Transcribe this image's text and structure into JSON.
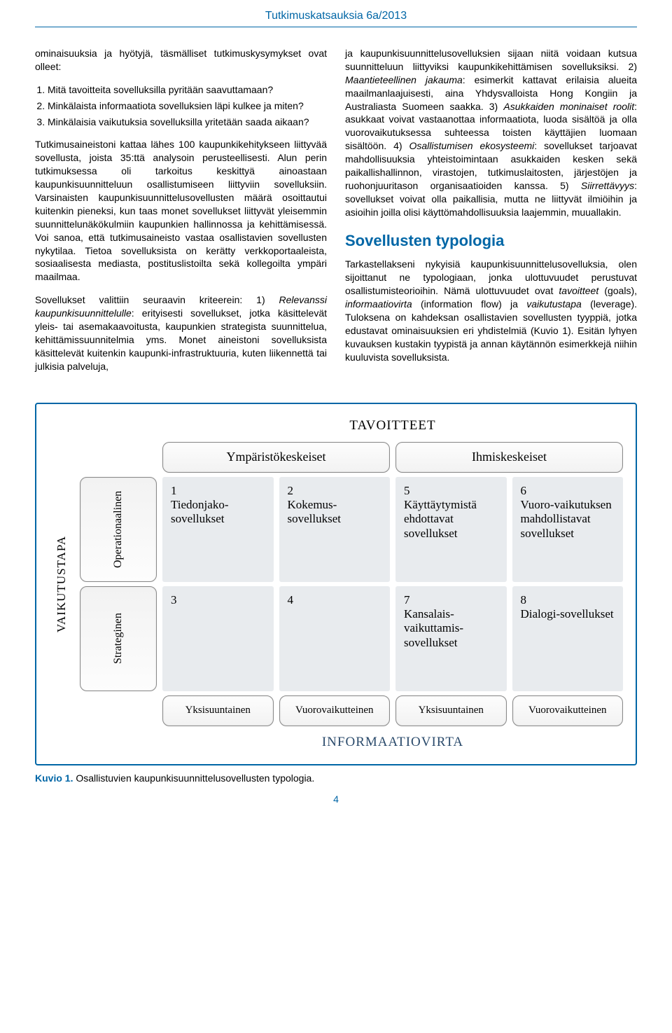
{
  "header": {
    "title": "Tutkimuskatsauksia 6a/2013"
  },
  "left_col": {
    "intro": "ominaisuuksia ja hyötyjä, täsmälliset tutkimuskysymykset ovat olleet:",
    "questions": [
      "Mitä tavoitteita sovelluksilla pyritään saavuttamaan?",
      "Minkälaista informaatiota sovelluksien läpi kulkee ja miten?",
      "Minkälaisia vaikutuksia sovelluksilla yritetään saada aikaan?"
    ],
    "p2": "Tutkimusaineistoni kattaa lähes 100 kaupunkikehitykseen liittyvää sovellusta, joista 35:ttä analysoin perusteellisesti. Alun perin tutkimuksessa oli tarkoitus keskittyä ainoastaan kaupunkisuunnitteluun osallistumiseen liittyviin sovelluksiin. Varsinaisten kaupunkisuunnittelusovellusten määrä osoittautui kuitenkin pieneksi, kun taas monet sovellukset liittyvät yleisemmin suunnittelunäkökulmiin kaupunkien hallinnossa ja kehittämisessä. Voi sanoa, että tutkimusaineisto vastaa osallistavien sovellusten nykytilaa. Tietoa sovelluksista on kerätty verkkoportaaleista, sosiaalisesta mediasta, postituslistoilta sekä kollegoilta ympäri maailmaa.",
    "p3_before_i1": "Sovellukset valittiin seuraavin kriteerein: 1) ",
    "p3_i1": "Relevanssi kaupunkisuunnittelulle",
    "p3_after_i1": ": erityisesti sovellukset, jotka käsittelevät yleis- tai asemakaavoitusta, kaupunkien strategista suunnittelua, kehittämissuunnitelmia yms. Monet aineistoni sovelluksista käsittelevät kuitenkin kaupunki-infrastruktuuria, kuten liikennettä tai julkisia palveluja,"
  },
  "right_col": {
    "p1_a": "ja kaupunkisuunnittelusovelluksien sijaan niitä voidaan kutsua suunnitteluun liittyviksi kaupunkikehittämisen sovelluksiksi. 2) ",
    "p1_i1": "Maantieteellinen jakauma",
    "p1_b": ": esimerkit kattavat erilaisia alueita maailmanlaajuisesti, aina Yhdysvalloista Hong Kongiin ja Australiasta Suomeen saakka. 3) ",
    "p1_i2": "Asukkaiden moninaiset roolit",
    "p1_c": ": asukkaat voivat vastaanottaa informaatiota, luoda sisältöä ja olla vuorovaikutuksessa suhteessa toisten käyttäjien luomaan sisältöön. 4) ",
    "p1_i3": "Osallistumisen ekosysteemi",
    "p1_d": ": sovellukset tarjoavat mahdollisuuksia yhteistoimintaan asukkaiden kesken sekä paikallishallinnon, virastojen, tutkimuslaitosten, järjestöjen ja ruohonjuuritason organisaatioiden kanssa. 5) ",
    "p1_i4": "Siirrettävyys",
    "p1_e": ": sovellukset voivat olla paikallisia, mutta ne liittyvät ilmiöihin ja asioihin joilla olisi käyttömahdollisuuksia laajemmin, muuallakin.",
    "section_title": "Sovellusten typologia",
    "p2_a": "Tarkastellakseni nykyisiä kaupunkisuunnittelusovelluksia, olen sijoittanut ne typologiaan, jonka ulottuvuudet perustuvat osallistumisteorioihin. Nämä ulottuvuudet ovat ",
    "p2_i1": "tavoitteet",
    "p2_b": " (goals), ",
    "p2_i2": "informaatiovirta",
    "p2_c": " (information flow) ja ",
    "p2_i3": "vaikutustapa",
    "p2_d": " (leverage). Tuloksena on kahdeksan osallistavien sovellusten tyyppiä, jotka edustavat ominaisuuksien eri yhdistelmiä (Kuvio 1). Esitän lyhyen kuvauksen kustakin tyypistä ja annan käytännön esimerkkejä niihin kuuluvista sovelluksista."
  },
  "diagram": {
    "title_top": "TAVOITTEET",
    "title_bottom": "INFORMAATIOVIRTA",
    "title_left": "VAIKUTUSTAPA",
    "goal_env": "Ympäristökeskeiset",
    "goal_human": "Ihmiskeskeiset",
    "lev_oper": "Operationaalinen",
    "lev_strat": "Strateginen",
    "flow_yksi": "Yksisuuntainen",
    "flow_vuoro": "Vuorovaikutteinen",
    "cells": {
      "c1": {
        "num": "1",
        "label": "Tiedonjako-sovellukset"
      },
      "c2": {
        "num": "2",
        "label": "Kokemus-sovellukset"
      },
      "c5": {
        "num": "5",
        "label": "Käyttäytymistä ehdottavat sovellukset"
      },
      "c6": {
        "num": "6",
        "label": "Vuoro-vaikutuksen mahdollistavat sovellukset"
      },
      "c3": {
        "num": "3",
        "label": ""
      },
      "c4": {
        "num": "4",
        "label": ""
      },
      "c7": {
        "num": "7",
        "label": "Kansalais-vaikuttamis-sovellukset"
      },
      "c8": {
        "num": "8",
        "label": "Dialogi-sovellukset"
      }
    },
    "colors": {
      "cell_bg": "#e8ebee",
      "border": "#0066a6",
      "box_border": "#888888",
      "box_grad_top": "#fdfdfd",
      "box_grad_bot": "#f2f2f2"
    }
  },
  "caption": {
    "label": "Kuvio 1.",
    "text": " Osallistuvien kaupunkisuunnittelusovellusten typologia."
  },
  "page_number": "4"
}
